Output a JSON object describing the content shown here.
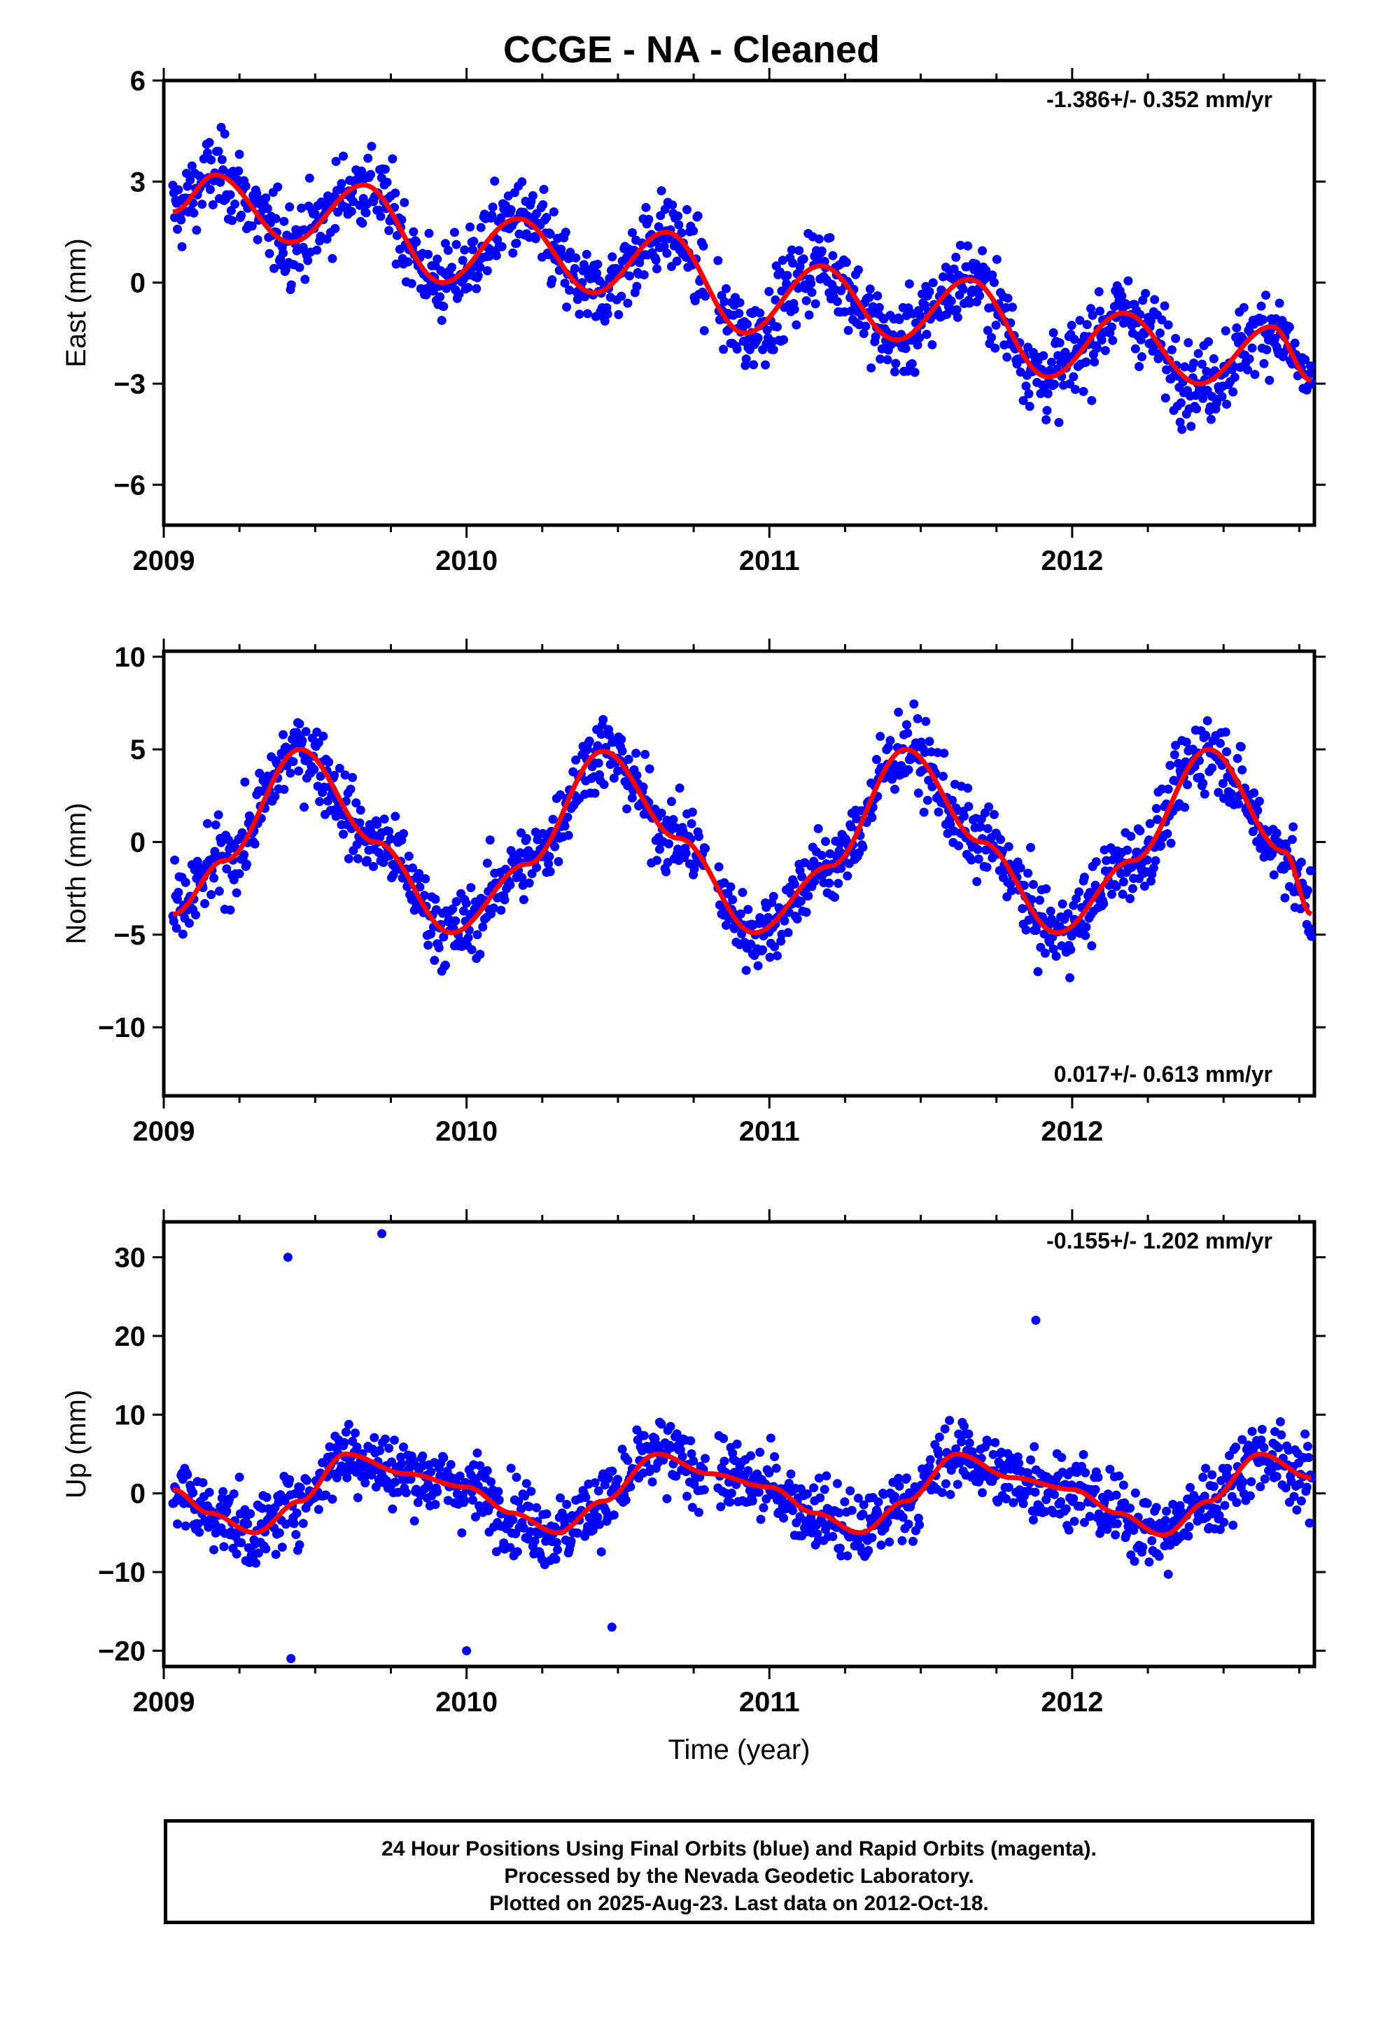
{
  "title": "CCGE  - NA - Cleaned",
  "xlabel": "Time (year)",
  "footer": {
    "line1": "24 Hour Positions Using Final Orbits (blue) and Rapid Orbits (magenta).",
    "line2": "Processed by the Nevada Geodetic Laboratory.",
    "line3": "Plotted on 2025-Aug-23. Last data on 2012-Oct-18."
  },
  "colors": {
    "points": "#0000ff",
    "model": "#ff0000",
    "axes": "#000000"
  },
  "chart_data": [
    {
      "type": "scatter",
      "panel": "east",
      "ylabel": "East (mm)",
      "rate": "-1.386+/- 0.352 mm/yr",
      "rate_position": "top-right",
      "xlim": [
        2009.0,
        2012.8
      ],
      "ylim": [
        -7.2,
        6.0
      ],
      "xticks": [
        2009,
        2010,
        2011,
        2012
      ],
      "yticks": [
        6,
        3,
        0,
        -3,
        -6
      ],
      "ytick_labels": [
        "6",
        "3",
        "0",
        "−3",
        "−6"
      ],
      "series": [
        {
          "kind": "daily_positions",
          "color": "blue",
          "x_start": 2009.03,
          "x_end": 2012.79,
          "count": 1250
        },
        {
          "kind": "model_fit",
          "color": "red",
          "x": [
            2009.03,
            2009.17,
            2009.42,
            2009.66,
            2009.92,
            2010.17,
            2010.42,
            2010.66,
            2010.92,
            2011.17,
            2011.42,
            2011.66,
            2011.92,
            2012.17,
            2012.42,
            2012.66,
            2012.79
          ],
          "y": [
            2.1,
            3.2,
            1.2,
            2.9,
            0.0,
            1.9,
            -0.3,
            1.5,
            -1.5,
            0.5,
            -1.7,
            0.1,
            -2.8,
            -0.9,
            -3.0,
            -1.3,
            -2.9
          ]
        }
      ]
    },
    {
      "type": "scatter",
      "panel": "north",
      "ylabel": "North (mm)",
      "rate": "0.017+/- 0.613 mm/yr",
      "rate_position": "bottom-right",
      "xlim": [
        2009.0,
        2012.8
      ],
      "ylim": [
        -13.7,
        10.3
      ],
      "xticks": [
        2009,
        2010,
        2011,
        2012
      ],
      "yticks": [
        10,
        5,
        0,
        -5,
        -10
      ],
      "ytick_labels": [
        "10",
        "5",
        "0",
        "−5",
        "−10"
      ],
      "series": [
        {
          "kind": "daily_positions",
          "color": "blue",
          "x_start": 2009.03,
          "x_end": 2012.79,
          "count": 1250
        },
        {
          "kind": "model_fit",
          "color": "red",
          "x": [
            2009.03,
            2009.2,
            2009.45,
            2009.7,
            2009.95,
            2010.2,
            2010.45,
            2010.7,
            2010.95,
            2011.2,
            2011.45,
            2011.7,
            2011.95,
            2012.2,
            2012.45,
            2012.7,
            2012.79
          ],
          "y": [
            -3.9,
            -1.0,
            5.0,
            0.0,
            -4.9,
            -1.2,
            4.9,
            0.2,
            -4.9,
            -1.3,
            5.0,
            0.0,
            -4.9,
            -1.0,
            5.0,
            -0.5,
            -3.9
          ]
        }
      ]
    },
    {
      "type": "scatter",
      "panel": "up",
      "ylabel": "Up (mm)",
      "rate": "-0.155+/- 1.202 mm/yr",
      "rate_position": "top-right",
      "xlim": [
        2009.0,
        2012.8
      ],
      "ylim": [
        -22,
        34.5
      ],
      "xticks": [
        2009,
        2010,
        2011,
        2012
      ],
      "yticks": [
        30,
        20,
        10,
        0,
        -10,
        -20
      ],
      "ytick_labels": [
        "30",
        "20",
        "10",
        "0",
        "−10",
        "−20"
      ],
      "outliers": {
        "x": [
          2009.41,
          2009.72,
          2009.42,
          2010.0,
          2011.88,
          2010.48
        ],
        "y": [
          30.0,
          33.0,
          -21.0,
          -20.0,
          22.0,
          -17.0
        ]
      },
      "series": [
        {
          "kind": "daily_positions",
          "color": "blue",
          "x_start": 2009.03,
          "x_end": 2012.79,
          "count": 1250
        },
        {
          "kind": "model_fit",
          "color": "red",
          "x": [
            2009.03,
            2009.15,
            2009.3,
            2009.45,
            2009.6,
            2009.8,
            2010.0,
            2010.15,
            2010.3,
            2010.45,
            2010.63,
            2010.8,
            2011.0,
            2011.15,
            2011.3,
            2011.45,
            2011.62,
            2011.8,
            2012.0,
            2012.15,
            2012.3,
            2012.45,
            2012.62,
            2012.79
          ],
          "y": [
            0.5,
            -2.5,
            -5.0,
            -1.0,
            5.0,
            2.5,
            0.8,
            -2.5,
            -5.0,
            -1.0,
            5.0,
            2.5,
            0.8,
            -2.5,
            -5.0,
            -1.0,
            5.0,
            2.0,
            0.5,
            -2.5,
            -5.3,
            -1.0,
            5.0,
            2.0
          ]
        }
      ]
    }
  ]
}
